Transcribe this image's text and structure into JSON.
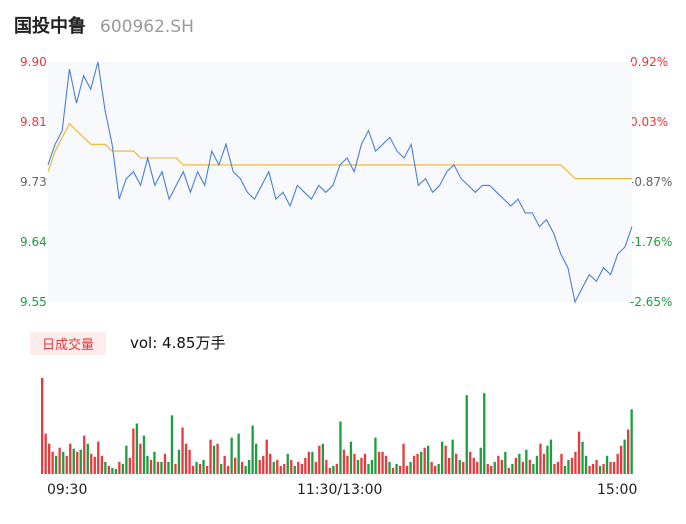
{
  "header": {
    "name": "国投中鲁",
    "code": "600962.SH"
  },
  "price_axis": [
    "9.90",
    "9.81",
    "9.73",
    "9.64",
    "9.55"
  ],
  "pct_axis": [
    "0.92%",
    "0.03%",
    "-0.87%",
    "-1.76%",
    "-2.65%"
  ],
  "volume": {
    "badge": "日成交量",
    "text": "vol: 4.85万手"
  },
  "time_axis": [
    "09:30",
    "11:30/13:00",
    "15:00"
  ],
  "colors": {
    "price": "#4a7fd8",
    "avg": "#f0b429",
    "up": "#e8393d",
    "down": "#1a9f3c"
  },
  "chart_data": [
    {
      "type": "line",
      "xlabel": "",
      "ylabel": "",
      "ylim": [
        9.55,
        9.9
      ],
      "series": [
        {
          "values": [
            9.75,
            9.78,
            9.8,
            9.89,
            9.84,
            9.88,
            9.86,
            9.9,
            9.83,
            9.78,
            9.7,
            9.73,
            9.74,
            9.72,
            9.76,
            9.72,
            9.74,
            9.7,
            9.72,
            9.74,
            9.71,
            9.74,
            9.72,
            9.77,
            9.75,
            9.78,
            9.74,
            9.73,
            9.71,
            9.7,
            9.72,
            9.74,
            9.7,
            9.71,
            9.69,
            9.72,
            9.71,
            9.7,
            9.72,
            9.71,
            9.72,
            9.75,
            9.76,
            9.74,
            9.78,
            9.8,
            9.77,
            9.78,
            9.79,
            9.77,
            9.76,
            9.78,
            9.72,
            9.73,
            9.71,
            9.72,
            9.74,
            9.75,
            9.73,
            9.72,
            9.71,
            9.72,
            9.72,
            9.71,
            9.7,
            9.69,
            9.7,
            9.68,
            9.68,
            9.66,
            9.67,
            9.65,
            9.62,
            9.6,
            9.55,
            9.57,
            9.59,
            9.58,
            9.6,
            9.59,
            9.62,
            9.63,
            9.66
          ]
        },
        {
          "values": [
            9.74,
            9.77,
            9.79,
            9.81,
            9.8,
            9.79,
            9.78,
            9.78,
            9.78,
            9.77,
            9.77,
            9.77,
            9.77,
            9.76,
            9.76,
            9.76,
            9.76,
            9.76,
            9.76,
            9.75,
            9.75,
            9.75,
            9.75,
            9.75,
            9.75,
            9.75,
            9.75,
            9.75,
            9.75,
            9.75,
            9.75,
            9.75,
            9.75,
            9.75,
            9.75,
            9.75,
            9.75,
            9.75,
            9.75,
            9.75,
            9.75,
            9.75,
            9.75,
            9.75,
            9.75,
            9.75,
            9.75,
            9.75,
            9.75,
            9.75,
            9.75,
            9.75,
            9.75,
            9.75,
            9.75,
            9.75,
            9.75,
            9.75,
            9.75,
            9.75,
            9.75,
            9.75,
            9.75,
            9.75,
            9.75,
            9.75,
            9.75,
            9.75,
            9.75,
            9.75,
            9.75,
            9.75,
            9.75,
            9.74,
            9.73,
            9.73,
            9.73,
            9.73,
            9.73,
            9.73,
            9.73,
            9.73,
            9.73
          ]
        }
      ]
    },
    {
      "type": "bar",
      "values": [
        [
          95,
          1
        ],
        [
          40,
          1
        ],
        [
          30,
          1
        ],
        [
          22,
          1
        ],
        [
          18,
          0
        ],
        [
          26,
          1
        ],
        [
          22,
          0
        ],
        [
          18,
          1
        ],
        [
          30,
          1
        ],
        [
          25,
          0
        ],
        [
          22,
          1
        ],
        [
          24,
          0
        ],
        [
          38,
          1
        ],
        [
          30,
          0
        ],
        [
          20,
          1
        ],
        [
          17,
          1
        ],
        [
          32,
          1
        ],
        [
          18,
          1
        ],
        [
          12,
          0
        ],
        [
          8,
          1
        ],
        [
          6,
          0
        ],
        [
          5,
          0
        ],
        [
          12,
          1
        ],
        [
          10,
          0
        ],
        [
          28,
          0
        ],
        [
          16,
          1
        ],
        [
          45,
          1
        ],
        [
          50,
          0
        ],
        [
          30,
          1
        ],
        [
          38,
          0
        ],
        [
          18,
          0
        ],
        [
          14,
          1
        ],
        [
          22,
          0
        ],
        [
          12,
          1
        ],
        [
          12,
          0
        ],
        [
          20,
          1
        ],
        [
          12,
          0
        ],
        [
          58,
          0
        ],
        [
          10,
          1
        ],
        [
          24,
          0
        ],
        [
          46,
          1
        ],
        [
          30,
          1
        ],
        [
          24,
          1
        ],
        [
          8,
          1
        ],
        [
          12,
          0
        ],
        [
          10,
          1
        ],
        [
          14,
          0
        ],
        [
          8,
          1
        ],
        [
          34,
          1
        ],
        [
          28,
          0
        ],
        [
          30,
          1
        ],
        [
          10,
          0
        ],
        [
          18,
          1
        ],
        [
          8,
          1
        ],
        [
          36,
          0
        ],
        [
          16,
          1
        ],
        [
          40,
          0
        ],
        [
          12,
          1
        ],
        [
          8,
          0
        ],
        [
          14,
          0
        ],
        [
          48,
          0
        ],
        [
          30,
          0
        ],
        [
          14,
          1
        ],
        [
          18,
          1
        ],
        [
          34,
          1
        ],
        [
          20,
          1
        ],
        [
          12,
          0
        ],
        [
          14,
          1
        ],
        [
          8,
          1
        ],
        [
          10,
          1
        ],
        [
          20,
          0
        ],
        [
          14,
          1
        ],
        [
          8,
          0
        ],
        [
          12,
          1
        ],
        [
          10,
          1
        ],
        [
          16,
          1
        ],
        [
          22,
          1
        ],
        [
          22,
          0
        ],
        [
          12,
          1
        ],
        [
          28,
          1
        ],
        [
          30,
          0
        ],
        [
          14,
          1
        ],
        [
          6,
          1
        ],
        [
          8,
          0
        ],
        [
          10,
          1
        ],
        [
          52,
          0
        ],
        [
          24,
          1
        ],
        [
          18,
          1
        ],
        [
          32,
          0
        ],
        [
          20,
          1
        ],
        [
          14,
          0
        ],
        [
          16,
          1
        ],
        [
          20,
          1
        ],
        [
          10,
          0
        ],
        [
          14,
          0
        ],
        [
          36,
          0
        ],
        [
          22,
          1
        ],
        [
          22,
          1
        ],
        [
          18,
          1
        ],
        [
          12,
          0
        ],
        [
          6,
          1
        ],
        [
          10,
          0
        ],
        [
          8,
          1
        ],
        [
          30,
          1
        ],
        [
          8,
          1
        ],
        [
          12,
          0
        ],
        [
          18,
          1
        ],
        [
          20,
          1
        ],
        [
          22,
          0
        ],
        [
          26,
          1
        ],
        [
          28,
          0
        ],
        [
          12,
          1
        ],
        [
          8,
          1
        ],
        [
          10,
          0
        ],
        [
          32,
          0
        ],
        [
          28,
          1
        ],
        [
          16,
          1
        ],
        [
          34,
          0
        ],
        [
          20,
          1
        ],
        [
          14,
          0
        ],
        [
          12,
          1
        ],
        [
          78,
          0
        ],
        [
          22,
          1
        ],
        [
          16,
          1
        ],
        [
          12,
          1
        ],
        [
          26,
          0
        ],
        [
          80,
          0
        ],
        [
          10,
          1
        ],
        [
          8,
          1
        ],
        [
          12,
          0
        ],
        [
          18,
          1
        ],
        [
          14,
          1
        ],
        [
          22,
          0
        ],
        [
          6,
          1
        ],
        [
          10,
          0
        ],
        [
          16,
          1
        ],
        [
          20,
          0
        ],
        [
          12,
          1
        ],
        [
          24,
          0
        ],
        [
          14,
          1
        ],
        [
          10,
          0
        ],
        [
          18,
          0
        ],
        [
          30,
          1
        ],
        [
          20,
          1
        ],
        [
          28,
          0
        ],
        [
          34,
          0
        ],
        [
          10,
          1
        ],
        [
          12,
          1
        ],
        [
          20,
          1
        ],
        [
          8,
          0
        ],
        [
          14,
          0
        ],
        [
          16,
          1
        ],
        [
          22,
          1
        ],
        [
          42,
          1
        ],
        [
          32,
          0
        ],
        [
          18,
          0
        ],
        [
          8,
          1
        ],
        [
          10,
          1
        ],
        [
          14,
          1
        ],
        [
          8,
          0
        ],
        [
          10,
          1
        ],
        [
          18,
          0
        ],
        [
          12,
          1
        ],
        [
          12,
          1
        ],
        [
          20,
          1
        ],
        [
          28,
          1
        ],
        [
          34,
          0
        ],
        [
          44,
          1
        ],
        [
          64,
          0
        ]
      ]
    }
  ]
}
